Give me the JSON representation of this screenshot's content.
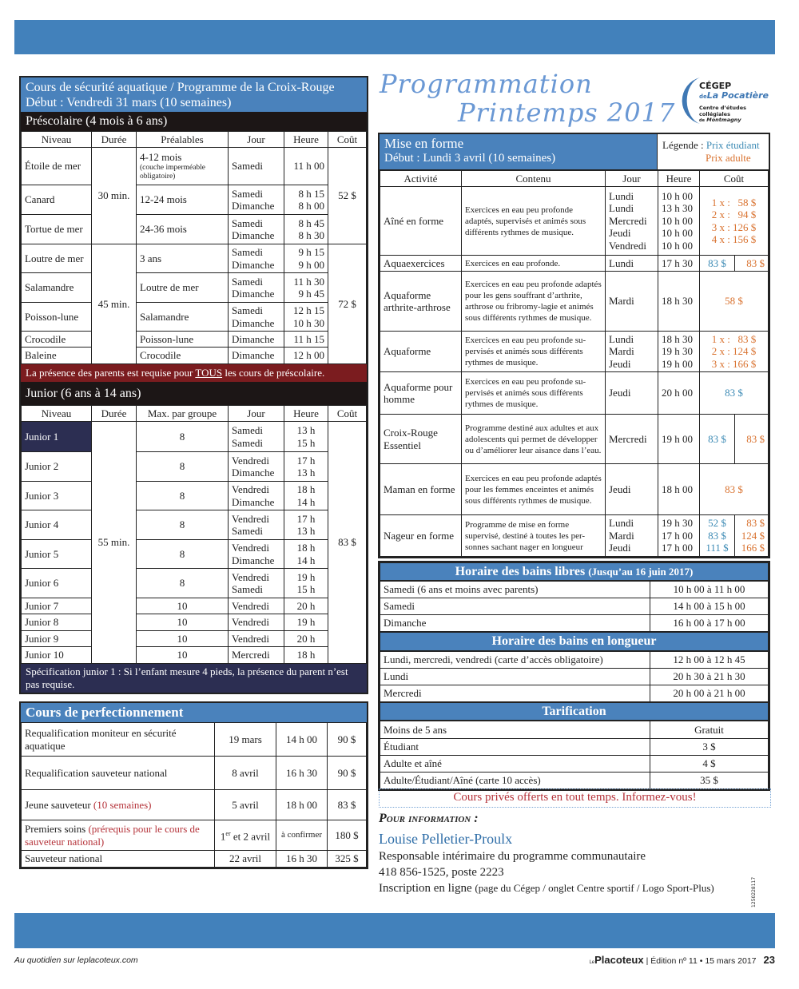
{
  "preschool": {
    "title": "Cours de sécurité aquatique / Programme de la Croix-Rouge",
    "subtitle": "Début : Vendredi 31 mars (10 semaines)",
    "section": "Préscolaire (4 mois à 6 ans)",
    "headers": [
      "Niveau",
      "Durée",
      "Préalables",
      "Jour",
      "Heure",
      "Coût"
    ],
    "groups": [
      {
        "duree": "30 min.",
        "cout": "52 $",
        "rows": [
          {
            "niveau": "Étoile de mer",
            "prealables": "4-12 mois",
            "prealables_note": "(couche imperméable obligatoire)",
            "jour": "Samedi",
            "heure": "11 h 00"
          },
          {
            "niveau": "Canard",
            "prealables": "12-24 mois",
            "jour": "Samedi\nDimanche",
            "heure": "8 h 15\n8 h 00"
          },
          {
            "niveau": "Tortue de mer",
            "prealables": "24-36 mois",
            "jour": "Samedi\nDimanche",
            "heure": "8 h 45\n8 h 30"
          }
        ]
      },
      {
        "duree": "45 min.",
        "cout": "72 $",
        "rows": [
          {
            "niveau": "Loutre de mer",
            "prealables": "3 ans",
            "jour": "Samedi\nDimanche",
            "heure": "9 h 15\n9 h 00"
          },
          {
            "niveau": "Salamandre",
            "prealables": "Loutre de mer",
            "jour": "Samedi\nDimanche",
            "heure": "11 h 30\n9 h 45"
          },
          {
            "niveau": "Poisson-lune",
            "prealables": "Salamandre",
            "jour": "Samedi\nDimanche",
            "heure": "12 h 15\n10 h 30"
          },
          {
            "niveau": "Crocodile",
            "prealables": "Poisson-lune",
            "jour": "Dimanche",
            "heure": "11 h 15"
          },
          {
            "niveau": "Baleine",
            "prealables": "Crocodile",
            "jour": "Dimanche",
            "heure": "12 h 00"
          }
        ]
      }
    ],
    "note_before": "La présence des parents est requise pour ",
    "note_emphasis": "TOUS",
    "note_after": " les cours de préscolaire."
  },
  "junior": {
    "section": "Junior (6 ans à 14 ans)",
    "headers": [
      "Niveau",
      "Durée",
      "Max. par groupe",
      "Jour",
      "Heure",
      "Coût"
    ],
    "duree": "55 min.",
    "cout": "83 $",
    "selected": "Junior 1",
    "rows": [
      {
        "niveau": "Junior 1",
        "max": "8",
        "jour": "Samedi\nSamedi",
        "heure": "13 h\n15 h"
      },
      {
        "niveau": "Junior 2",
        "max": "8",
        "jour": "Vendredi\nDimanche",
        "heure": "17 h\n13 h"
      },
      {
        "niveau": "Junior 3",
        "max": "8",
        "jour": "Vendredi\nDimanche",
        "heure": "18 h\n14 h"
      },
      {
        "niveau": "Junior 4",
        "max": "8",
        "jour": "Vendredi\nSamedi",
        "heure": "17 h\n13 h"
      },
      {
        "niveau": "Junior 5",
        "max": "8",
        "jour": "Vendredi\nDimanche",
        "heure": "18 h\n14 h"
      },
      {
        "niveau": "Junior 6",
        "max": "8",
        "jour": "Vendredi\nSamedi",
        "heure": "19 h\n15 h"
      },
      {
        "niveau": "Junior 7",
        "max": "10",
        "jour": "Vendredi",
        "heure": "20 h"
      },
      {
        "niveau": "Junior 8",
        "max": "10",
        "jour": "Vendredi",
        "heure": "19 h"
      },
      {
        "niveau": "Junior 9",
        "max": "10",
        "jour": "Vendredi",
        "heure": "20 h"
      },
      {
        "niveau": "Junior 10",
        "max": "10",
        "jour": "Mercredi",
        "heure": "18 h"
      }
    ],
    "note": "Spécification junior 1 : Si l’enfant mesure 4 pieds, la présence du parent n’est pas requise."
  },
  "perfectionnement": {
    "title": "Cours de perfectionnement",
    "rows": [
      {
        "cours": "Requalification moniteur en sécurité aquatique",
        "date": "19 mars",
        "heure": "14 h 00",
        "cout": "90 $"
      },
      {
        "cours": "Requalification sauveteur national",
        "date": "8 avril",
        "heure": "16 h 30",
        "cout": "90 $"
      },
      {
        "cours": "Jeune sauveteur ",
        "cours_note": "(10 semaines)",
        "date": "5 avril",
        "heure": "18 h 00",
        "cout": "83 $"
      },
      {
        "cours": "Premiers soins ",
        "cours_note": "(prérequis pour le cours de sauveteur national)",
        "date": "1",
        "date_sup": "er",
        "date_after": " et 2 avril",
        "heure": "à confirmer",
        "cout": "180 $"
      },
      {
        "cours": "Sauveteur national",
        "date": "22 avril",
        "heure": "16 h 30",
        "cout": "325 $"
      }
    ]
  },
  "header": {
    "title_line1": "Programmation",
    "title_line2": "Printemps 2017",
    "logo": {
      "line1": "CÉGEP",
      "de": "de",
      "line2": "La Pocatière",
      "line3": "Centre d’études collégiales",
      "de2": "de",
      "line4": "Montmagny"
    }
  },
  "mise_en_forme": {
    "title": "Mise en forme",
    "subtitle": "Début : Lundi 3 avril (10 semaines)",
    "legend_label": "Légende : ",
    "legend_student": "Prix étudiant",
    "legend_adult": "Prix adulte",
    "headers": [
      "Activité",
      "Contenu",
      "Jour",
      "Heure",
      "Coût"
    ],
    "rows": [
      {
        "activite": "Aîné en forme",
        "contenu": "Exercices en eau peu profonde adaptés, supervisés et animés sous différents rythmes de musique.",
        "jour": "Lundi\nLundi\nMercredi\nJeudi\nVendredi",
        "heure": "10 h 00\n13 h 30\n10 h 00\n10 h 00\n10 h 00",
        "adulte": "1 x :   58 $\n2 x :   94 $\n3 x : 126 $\n4 x : 156 $"
      },
      {
        "activite": "Aquaexercices",
        "contenu": "Exercices en eau profonde.",
        "jour": "Lundi",
        "heure": "17 h 30",
        "etudiant": "83 $",
        "adulte": "83 $"
      },
      {
        "activite": "Aquaforme arthrite-arthrose",
        "contenu": "Exercices en eau peu profonde adaptés pour les gens souffrant d’arthrite, arthrose ou fribromy-lagie et animés sous différents rythmes de musique.",
        "jour": "Mardi",
        "heure": "18 h 30",
        "adulte": "58 $"
      },
      {
        "activite": "Aquaforme",
        "contenu": "Exercices en eau peu profonde su-pervisés et animés sous différents rythmes de musique.",
        "jour": "Lundi\nMardi\nJeudi",
        "heure": "18 h 30\n19 h 30\n19 h 00",
        "adulte": "1 x :   83 $\n2 x : 124 $\n3 x : 166 $"
      },
      {
        "activite": "Aquaforme pour homme",
        "contenu": "Exercices en eau peu profonde su-pervisés et animés sous différents rythmes de musique.",
        "jour": "Jeudi",
        "heure": "20 h 00",
        "etudiant": "83 $"
      },
      {
        "activite": "Croix-Rouge Essentiel",
        "contenu": "Programme destiné aux adultes et aux adolescents qui permet de développer ou d’améliorer leur aisance dans l’eau.",
        "jour": "Mercredi",
        "heure": "19 h 00",
        "etudiant": "83 $",
        "adulte": "83 $"
      },
      {
        "activite": "Maman en forme",
        "contenu": "Exercices en eau peu profonde adaptés pour les femmes enceintes et animés sous différents rythmes de musique.",
        "jour": "Jeudi",
        "heure": "18 h 00",
        "adulte": "83 $"
      },
      {
        "activite": "Nageur en forme",
        "contenu": "Programme de mise en forme supervisé, destiné à toutes les per-sonnes sachant nager en longueur",
        "jour": "Lundi\nMardi\nJeudi",
        "heure": "19 h 30\n17 h 00\n17 h 00",
        "etudiant": "52 $\n83 $\n111 $",
        "adulte": "83 $\n124 $\n166 $"
      }
    ]
  },
  "horaires": [
    {
      "title": "Horaire des bains libres ",
      "title_note": "(Jusqu’au 16 juin 2017)",
      "rows": [
        [
          "Samedi (6 ans et moins avec parents)",
          "10 h 00 à 11 h 00"
        ],
        [
          "Samedi",
          "14 h 00 à 15 h 00"
        ],
        [
          "Dimanche",
          "16 h 00 à 17 h 00"
        ]
      ]
    },
    {
      "title": "Horaire des bains en longueur",
      "rows": [
        [
          "Lundi, mercredi, vendredi (carte d’accès obligatoire)",
          "12 h 00 à 12 h 45"
        ],
        [
          "Lundi",
          "20 h 30 à 21 h 30"
        ],
        [
          "Mercredi",
          "20 h 00 à 21 h 00"
        ]
      ]
    },
    {
      "title": "Tarification",
      "rows": [
        [
          "Moins de 5 ans",
          "Gratuit"
        ],
        [
          "Étudiant",
          "3 $"
        ],
        [
          "Adulte et aîné",
          "4 $"
        ],
        [
          "Adulte/Étudiant/Aîné (carte 10 accès)",
          "35 $"
        ]
      ]
    }
  ],
  "info": {
    "private_lessons": "Cours privés offerts en tout temps. Informez-vous!",
    "heading": "Pour information",
    "heading_colon": " :",
    "contact_name": "Louise Pelletier-Proulx",
    "contact_role": "Responsable intérimaire du programme communautaire",
    "phone": "418 856-1525, poste 2223",
    "signup": "Inscription en ligne ",
    "signup_note": "(page du Cégep / onglet Centre sportif / Logo Sport-Plus)",
    "ad_code": "1250228117"
  },
  "footer": {
    "left": "Au quotidien sur leplacoteux.com",
    "brand_prefix": "Le",
    "brand": "Placoteux",
    "edition": "Édition nº 11 • 15 mars 2017",
    "page": "23"
  },
  "colors": {
    "blue": "#4a82bc",
    "student": "#3d8bb5",
    "adult": "#d9722f",
    "red_band": "#7b1c1f",
    "navy": "#2c2e52"
  }
}
